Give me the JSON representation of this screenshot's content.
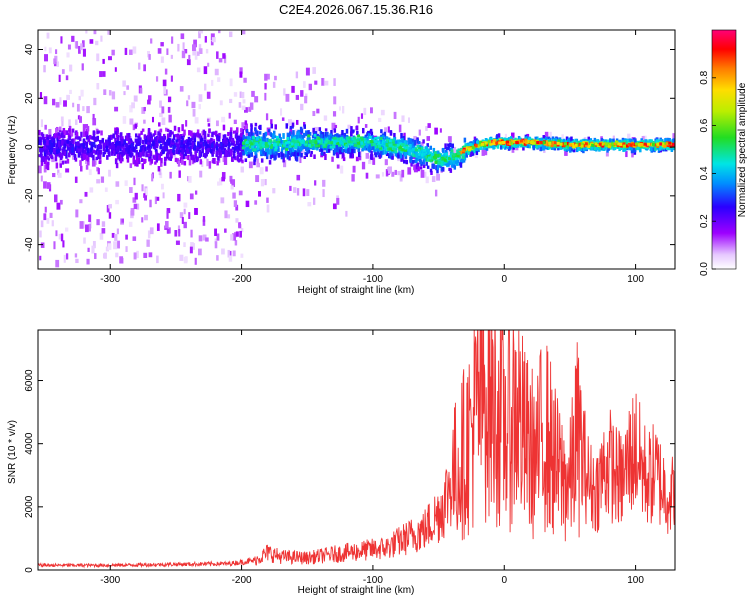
{
  "title": "C2E4.2026.067.15.36.R16",
  "chart_data": [
    {
      "type": "heatmap",
      "name": "spectrogram",
      "xlabel": "Height of straight line (km)",
      "ylabel": "Frequency (Hz)",
      "xlim": [
        -355,
        130
      ],
      "ylim": [
        -50,
        48
      ],
      "x_ticks": [
        -300,
        -200,
        -100,
        0,
        100
      ],
      "y_ticks": [
        -40,
        -20,
        0,
        20,
        40
      ],
      "x_tick_labels": [
        "-300",
        "-200",
        "-100",
        "0",
        "100"
      ],
      "y_tick_labels": [
        "-40",
        "-20",
        "0",
        "20",
        "40"
      ],
      "ridge": {
        "x": [
          -355,
          -200,
          -150,
          -100,
          -80,
          -60,
          -50,
          -40,
          -30,
          -20,
          -10,
          0,
          20,
          50,
          100,
          130
        ],
        "freq_hz": [
          0,
          1,
          2,
          2,
          0,
          -3,
          -5,
          -4,
          -1,
          1,
          2,
          2,
          2,
          1,
          1,
          1
        ]
      },
      "colorbar": {
        "label": "Normalized spectral amplitude",
        "range": [
          0,
          1
        ],
        "ticks": [
          0.0,
          0.2,
          0.4,
          0.6,
          0.8
        ],
        "tick_labels": [
          "0.0",
          "0.2",
          "0.4",
          "0.6",
          "0.8"
        ]
      }
    },
    {
      "type": "line",
      "name": "snr",
      "xlabel": "Height of straight line (km)",
      "ylabel": "SNR (10 * v/v)",
      "xlim": [
        -355,
        130
      ],
      "ylim": [
        0,
        7600
      ],
      "x_ticks": [
        -300,
        -200,
        -100,
        0,
        100
      ],
      "y_ticks": [
        0,
        2000,
        4000,
        6000
      ],
      "x_tick_labels": [
        "-300",
        "-200",
        "-100",
        "0",
        "100"
      ],
      "y_tick_labels": [
        "0",
        "2000",
        "4000",
        "6000"
      ],
      "series": [
        {
          "name": "SNR",
          "color": "#ee3333",
          "x": [
            -355,
            -300,
            -250,
            -210,
            -190,
            -180,
            -170,
            -150,
            -130,
            -110,
            -100,
            -90,
            -80,
            -70,
            -60,
            -50,
            -45,
            -40,
            -35,
            -30,
            -25,
            -20,
            -15,
            -10,
            -5,
            0,
            5,
            10,
            15,
            20,
            25,
            30,
            35,
            40,
            45,
            50,
            55,
            60,
            65,
            70,
            75,
            80,
            85,
            90,
            95,
            100,
            105,
            110,
            115,
            120,
            125,
            130
          ],
          "values": [
            150,
            150,
            180,
            200,
            300,
            550,
            420,
            380,
            500,
            600,
            650,
            700,
            900,
            1100,
            1300,
            1800,
            2200,
            2900,
            3300,
            3800,
            4400,
            5200,
            5800,
            5500,
            5000,
            4500,
            4800,
            5200,
            4100,
            3800,
            3500,
            4600,
            3900,
            3200,
            2900,
            2700,
            4300,
            3600,
            2700,
            2500,
            3100,
            3400,
            3000,
            2800,
            3500,
            3900,
            3200,
            2900,
            3100,
            2700,
            2400,
            2400
          ]
        }
      ]
    }
  ]
}
